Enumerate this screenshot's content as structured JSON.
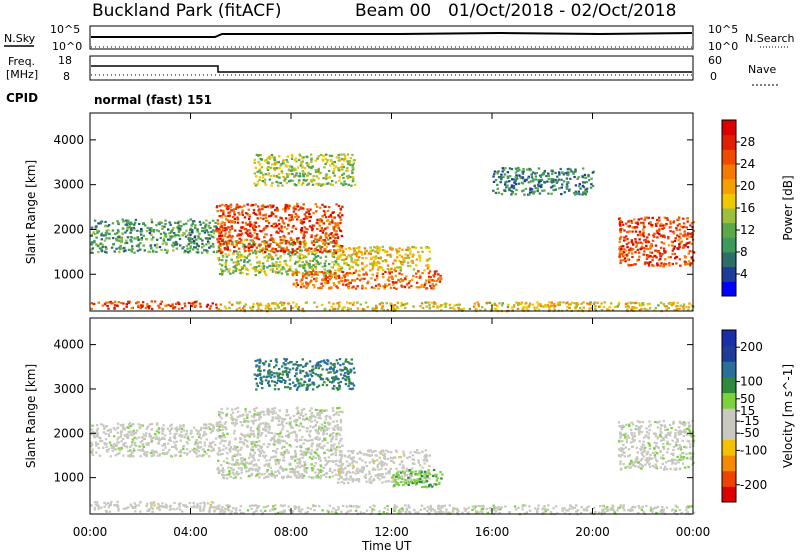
{
  "header": {
    "site_title": "Buckland Park (fitACF)",
    "beam_label": "Beam 00",
    "date_range": "01/Oct/2018 - 02/Oct/2018"
  },
  "noise_panel": {
    "left_label": "N.Sky",
    "right_label": "N.Search",
    "left_ticks": [
      "10^5",
      "10^0"
    ],
    "right_ticks": [
      "10^5",
      "10^0"
    ]
  },
  "freq_panel": {
    "left_label_line1": "Freq.",
    "left_label_line2": "[MHz]",
    "right_label": "Nave",
    "left_ticks": [
      "18",
      "8"
    ],
    "right_ticks": [
      "60",
      "0"
    ]
  },
  "cpid": {
    "label": "CPID",
    "mode_text": "normal (fast) 151"
  },
  "colors": {
    "axis": "#000000",
    "gray_scatter": "#c8c8c0"
  },
  "chart_data": [
    {
      "type": "heatmap",
      "name": "power",
      "xlabel": "",
      "ylabel": "Slant Range [km]",
      "xlim": [
        0,
        24
      ],
      "ylim": [
        180,
        4600
      ],
      "y_ticks": [
        1000,
        2000,
        3000,
        4000
      ],
      "colorbar": {
        "label": "Power [dB]",
        "range": [
          0,
          32
        ],
        "ticks": [
          "28",
          "24",
          "20",
          "16",
          "12",
          "8",
          "4"
        ],
        "tick_values": [
          28,
          24,
          20,
          16,
          12,
          8,
          4
        ],
        "colors": [
          "#0000ff",
          "#1e3c99",
          "#2d6e6a",
          "#3c9a5a",
          "#5aa848",
          "#9cbf3c",
          "#f0c800",
          "#f5a000",
          "#f57800",
          "#f04a00",
          "#e02000",
          "#dd0000"
        ]
      },
      "regions": [
        {
          "t0": 0.0,
          "t1": 5.0,
          "r0": 1500,
          "r1": 2250,
          "value": 10
        },
        {
          "t0": 0.0,
          "t1": 5.0,
          "r0": 250,
          "r1": 420,
          "value": 26
        },
        {
          "t0": 5.0,
          "t1": 24.0,
          "r0": 200,
          "r1": 400,
          "value": 18
        },
        {
          "t0": 5.0,
          "t1": 10.0,
          "r0": 1000,
          "r1": 1800,
          "value": 14
        },
        {
          "t0": 5.0,
          "t1": 10.0,
          "r0": 1500,
          "r1": 2600,
          "value": 26
        },
        {
          "t0": 8.0,
          "t1": 14.0,
          "r0": 700,
          "r1": 1100,
          "value": 24
        },
        {
          "t0": 9.8,
          "t1": 13.5,
          "r0": 1100,
          "r1": 1650,
          "value": 18
        },
        {
          "t0": 6.5,
          "t1": 10.5,
          "r0": 3000,
          "r1": 3700,
          "value": 14
        },
        {
          "t0": 21.0,
          "t1": 24.0,
          "r0": 1200,
          "r1": 2300,
          "value": 26
        },
        {
          "t0": 16.0,
          "t1": 20.0,
          "r0": 2800,
          "r1": 3400,
          "value": 8
        }
      ]
    },
    {
      "type": "heatmap",
      "name": "velocity",
      "xlabel": "Time UT",
      "ylabel": "Slant Range [km]",
      "xlim": [
        0,
        24
      ],
      "ylim": [
        180,
        4600
      ],
      "x_ticks": [
        "00:00",
        "04:00",
        "08:00",
        "12:00",
        "16:00",
        "20:00",
        "00:00"
      ],
      "x_tick_values": [
        0,
        4,
        8,
        12,
        16,
        20,
        24
      ],
      "y_ticks": [
        1000,
        2000,
        3000,
        4000
      ],
      "colorbar": {
        "label": "Velocity [m s^-1]",
        "range": [
          -250,
          250
        ],
        "ticks": [
          "200",
          "100",
          "50",
          "15",
          "-15",
          "-50",
          "-100",
          "-200"
        ],
        "tick_values": [
          200,
          100,
          50,
          15,
          -15,
          -50,
          -100,
          -200
        ],
        "colors": [
          "#dd0000",
          "#ee4400",
          "#f58a00",
          "#f2c200",
          "#c8c8c0",
          "#c8c8c0",
          "#7ad23c",
          "#2f8a3c",
          "#2a6f9a",
          "#1e3c99",
          "#1a2ea8"
        ]
      },
      "regions": [
        {
          "t0": 0.0,
          "t1": 5.0,
          "r0": 1500,
          "r1": 2250,
          "value": 0
        },
        {
          "t0": 0.0,
          "t1": 5.0,
          "r0": 250,
          "r1": 480,
          "value": -40
        },
        {
          "t0": 5.0,
          "t1": 24.0,
          "r0": 200,
          "r1": 400,
          "value": 0
        },
        {
          "t0": 5.0,
          "t1": 10.0,
          "r0": 1000,
          "r1": 2600,
          "value": 0
        },
        {
          "t0": 9.8,
          "t1": 13.5,
          "r0": 900,
          "r1": 1650,
          "value": -40
        },
        {
          "t0": 12.0,
          "t1": 14.0,
          "r0": 800,
          "r1": 1200,
          "value": 60
        },
        {
          "t0": 6.5,
          "t1": 10.5,
          "r0": 3000,
          "r1": 3700,
          "value": 120
        },
        {
          "t0": 21.0,
          "t1": 24.0,
          "r0": 1200,
          "r1": 2300,
          "value": 0
        }
      ]
    }
  ]
}
